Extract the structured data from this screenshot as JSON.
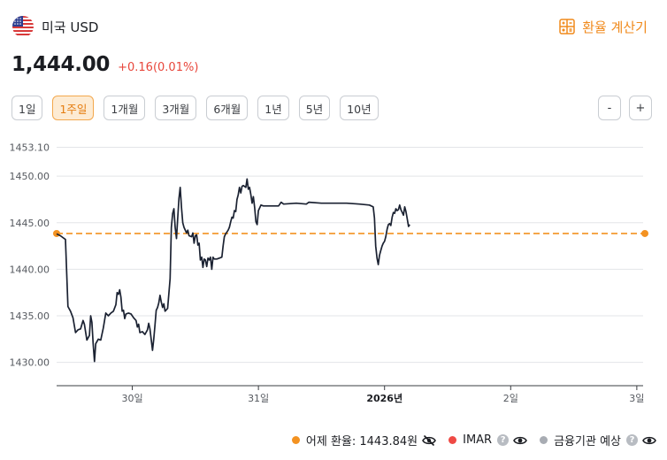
{
  "header": {
    "currency_name": "미국 USD",
    "calculator_label": "환율 계산기",
    "flag_icon": "us-flag-icon",
    "calculator_icon": "calculator-icon"
  },
  "quote": {
    "price": "1,444.00",
    "change": "+0.16(0.01%)",
    "change_color": "#e8463b"
  },
  "periods": [
    "1일",
    "1주일",
    "1개월",
    "3개월",
    "6개월",
    "1년",
    "5년",
    "10년"
  ],
  "active_period": "1주일",
  "zoom": {
    "out_label": "-",
    "in_label": "+"
  },
  "legend": {
    "items": [
      {
        "label": "어제 환율: 1443.84원",
        "color": "#f39221",
        "icon": "eye-off-icon",
        "help": false
      },
      {
        "label": "IMAR",
        "color": "#ef4a45",
        "icon": "eye-icon",
        "help": true
      },
      {
        "label": "금융기관 예상",
        "color": "#a8acb3",
        "icon": "eye-icon",
        "help": true
      }
    ]
  },
  "chart_data": {
    "type": "line",
    "y_ticks": [
      "1453.10",
      "1450.00",
      "1445.00",
      "1440.00",
      "1435.00",
      "1430.00"
    ],
    "x_ticks": [
      {
        "label": "30일",
        "t": 2.0,
        "bold": false
      },
      {
        "label": "31일",
        "t": 3.0,
        "bold": false
      },
      {
        "label": "2026년",
        "t": 4.0,
        "bold": true
      },
      {
        "label": "2일",
        "t": 5.0,
        "bold": false
      },
      {
        "label": "3일",
        "t": 6.0,
        "bold": false
      }
    ],
    "x_range": [
      1.4,
      6.05
    ],
    "y_range": [
      1427.5,
      1453.1
    ],
    "reference_line": {
      "value": 1443.84,
      "color": "#f39221"
    },
    "series": [
      {
        "color": "#1b2232",
        "points": [
          [
            1.4,
            1443.8
          ],
          [
            1.43,
            1443.6
          ],
          [
            1.47,
            1443.2
          ],
          [
            1.49,
            1436.0
          ],
          [
            1.51,
            1435.5
          ],
          [
            1.53,
            1434.8
          ],
          [
            1.55,
            1433.2
          ],
          [
            1.57,
            1433.5
          ],
          [
            1.59,
            1433.6
          ],
          [
            1.61,
            1434.5
          ],
          [
            1.62,
            1434.1
          ],
          [
            1.64,
            1432.4
          ],
          [
            1.66,
            1432.9
          ],
          [
            1.67,
            1435.0
          ],
          [
            1.68,
            1434.3
          ],
          [
            1.69,
            1432.0
          ],
          [
            1.7,
            1430.1
          ],
          [
            1.71,
            1432.0
          ],
          [
            1.73,
            1432.5
          ],
          [
            1.75,
            1432.4
          ],
          [
            1.77,
            1433.7
          ],
          [
            1.79,
            1435.3
          ],
          [
            1.81,
            1435.0
          ],
          [
            1.83,
            1435.3
          ],
          [
            1.85,
            1435.5
          ],
          [
            1.87,
            1436.2
          ],
          [
            1.88,
            1437.5
          ],
          [
            1.89,
            1437.3
          ],
          [
            1.9,
            1437.8
          ],
          [
            1.91,
            1437.0
          ],
          [
            1.92,
            1435.5
          ],
          [
            1.93,
            1435.6
          ],
          [
            1.94,
            1434.7
          ],
          [
            1.95,
            1435.2
          ],
          [
            1.97,
            1435.3
          ],
          [
            1.99,
            1435.2
          ],
          [
            2.01,
            1434.8
          ],
          [
            2.03,
            1434.5
          ],
          [
            2.04,
            1433.8
          ],
          [
            2.05,
            1434.1
          ],
          [
            2.06,
            1433.2
          ],
          [
            2.08,
            1433.3
          ],
          [
            2.1,
            1433.0
          ],
          [
            2.12,
            1433.5
          ],
          [
            2.13,
            1434.2
          ],
          [
            2.14,
            1433.6
          ],
          [
            2.15,
            1432.5
          ],
          [
            2.16,
            1431.3
          ],
          [
            2.17,
            1432.5
          ],
          [
            2.18,
            1434.0
          ],
          [
            2.19,
            1435.6
          ],
          [
            2.2,
            1435.9
          ],
          [
            2.21,
            1436.4
          ],
          [
            2.22,
            1437.2
          ],
          [
            2.23,
            1436.5
          ],
          [
            2.24,
            1435.9
          ],
          [
            2.25,
            1436.3
          ],
          [
            2.26,
            1435.5
          ],
          [
            2.28,
            1435.8
          ],
          [
            2.3,
            1439.0
          ],
          [
            2.31,
            1444.5
          ],
          [
            2.32,
            1446.0
          ],
          [
            2.33,
            1446.5
          ],
          [
            2.34,
            1444.5
          ],
          [
            2.35,
            1443.3
          ],
          [
            2.36,
            1445.5
          ],
          [
            2.37,
            1447.6
          ],
          [
            2.38,
            1448.8
          ],
          [
            2.39,
            1446.6
          ],
          [
            2.4,
            1445.0
          ],
          [
            2.41,
            1444.5
          ],
          [
            2.43,
            1443.9
          ],
          [
            2.44,
            1444.2
          ],
          [
            2.45,
            1443.6
          ],
          [
            2.47,
            1443.5
          ],
          [
            2.48,
            1443.9
          ],
          [
            2.49,
            1442.8
          ],
          [
            2.5,
            1443.6
          ],
          [
            2.51,
            1443.7
          ],
          [
            2.52,
            1442.6
          ],
          [
            2.53,
            1442.8
          ],
          [
            2.54,
            1441.0
          ],
          [
            2.55,
            1441.3
          ],
          [
            2.56,
            1440.2
          ],
          [
            2.57,
            1441.1
          ],
          [
            2.58,
            1441.0
          ],
          [
            2.59,
            1440.3
          ],
          [
            2.6,
            1441.2
          ],
          [
            2.61,
            1441.0
          ],
          [
            2.62,
            1441.3
          ],
          [
            2.63,
            1440.0
          ],
          [
            2.64,
            1441.3
          ],
          [
            2.65,
            1441.1
          ],
          [
            2.67,
            1441.1
          ],
          [
            2.69,
            1441.2
          ],
          [
            2.71,
            1441.3
          ],
          [
            2.72,
            1442.5
          ],
          [
            2.73,
            1443.5
          ],
          [
            2.74,
            1443.8
          ],
          [
            2.75,
            1444.0
          ],
          [
            2.76,
            1444.2
          ],
          [
            2.77,
            1444.5
          ],
          [
            2.78,
            1445.1
          ],
          [
            2.79,
            1445.6
          ],
          [
            2.8,
            1445.5
          ],
          [
            2.81,
            1446.3
          ],
          [
            2.82,
            1446.2
          ],
          [
            2.83,
            1447.5
          ],
          [
            2.84,
            1448.0
          ],
          [
            2.85,
            1448.8
          ],
          [
            2.86,
            1448.2
          ],
          [
            2.87,
            1448.9
          ],
          [
            2.88,
            1449.0
          ],
          [
            2.89,
            1448.9
          ],
          [
            2.9,
            1448.8
          ],
          [
            2.91,
            1449.7
          ],
          [
            2.92,
            1448.6
          ],
          [
            2.93,
            1448.8
          ],
          [
            2.94,
            1448.0
          ],
          [
            2.95,
            1447.1
          ],
          [
            2.96,
            1447.8
          ],
          [
            2.97,
            1446.6
          ],
          [
            2.98,
            1445.1
          ],
          [
            2.99,
            1444.8
          ],
          [
            3.0,
            1446.3
          ],
          [
            3.02,
            1446.9
          ],
          [
            3.04,
            1446.8
          ],
          [
            3.1,
            1446.8
          ],
          [
            3.16,
            1446.8
          ],
          [
            3.18,
            1447.2
          ],
          [
            3.2,
            1447.0
          ],
          [
            3.3,
            1447.1
          ],
          [
            3.38,
            1447.0
          ],
          [
            3.4,
            1447.2
          ],
          [
            3.5,
            1447.1
          ],
          [
            3.6,
            1447.1
          ],
          [
            3.7,
            1447.1
          ],
          [
            3.8,
            1447.0
          ],
          [
            3.88,
            1446.9
          ],
          [
            3.91,
            1446.7
          ],
          [
            3.92,
            1445.5
          ],
          [
            3.93,
            1442.5
          ],
          [
            3.94,
            1441.2
          ],
          [
            3.95,
            1440.5
          ],
          [
            3.96,
            1441.5
          ],
          [
            3.97,
            1442.0
          ],
          [
            3.98,
            1442.5
          ],
          [
            3.99,
            1442.8
          ],
          [
            4.0,
            1443.0
          ],
          [
            4.01,
            1443.5
          ],
          [
            4.02,
            1444.3
          ],
          [
            4.03,
            1444.8
          ],
          [
            4.04,
            1444.9
          ],
          [
            4.05,
            1444.7
          ],
          [
            4.06,
            1445.6
          ],
          [
            4.07,
            1446.1
          ],
          [
            4.08,
            1446.0
          ],
          [
            4.09,
            1446.5
          ],
          [
            4.1,
            1446.3
          ],
          [
            4.11,
            1446.4
          ],
          [
            4.12,
            1446.9
          ],
          [
            4.13,
            1446.4
          ],
          [
            4.14,
            1446.1
          ],
          [
            4.15,
            1445.8
          ],
          [
            4.16,
            1446.7
          ],
          [
            4.17,
            1446.2
          ],
          [
            4.18,
            1445.4
          ],
          [
            4.19,
            1444.6
          ],
          [
            4.2,
            1444.8
          ]
        ]
      }
    ]
  }
}
